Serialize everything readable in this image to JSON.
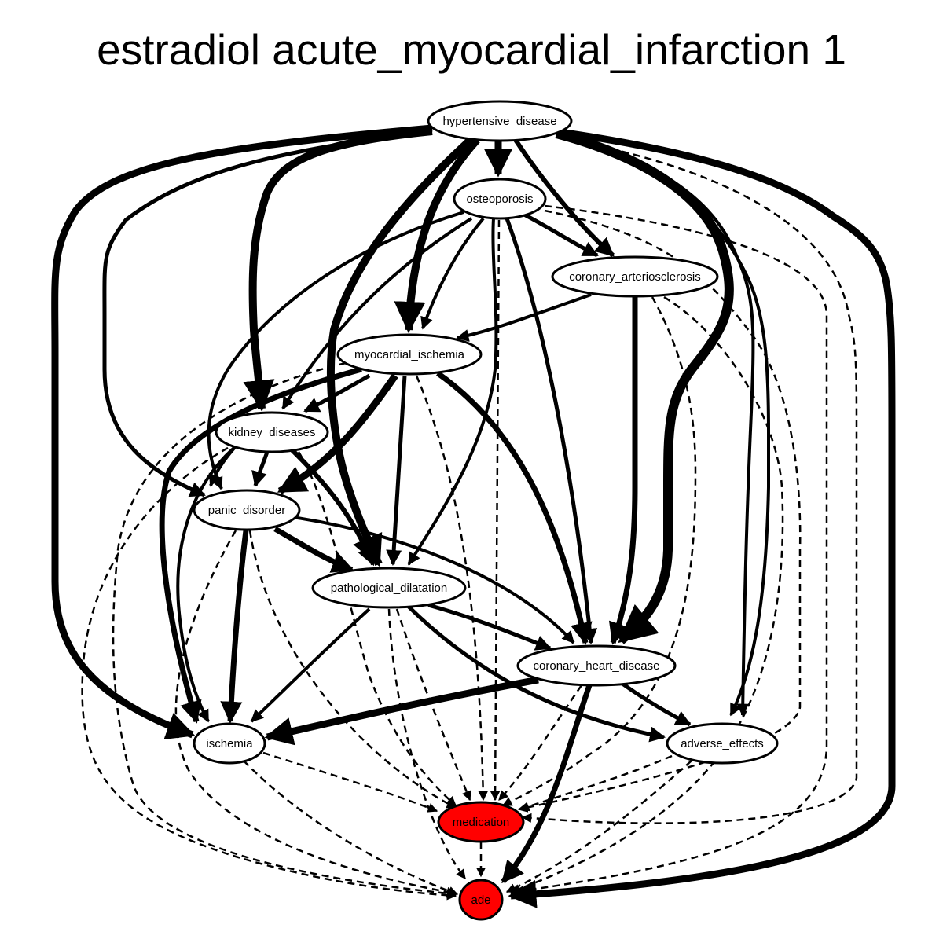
{
  "title": "estradiol acute_myocardial_infarction 1",
  "colors": {
    "normal_node": "#ffffff",
    "highlight_node": "#ff0000",
    "edge": "#000000"
  },
  "nodes": [
    {
      "id": "hypertensive_disease",
      "label": "hypertensive_disease",
      "highlight": false
    },
    {
      "id": "osteoporosis",
      "label": "osteoporosis",
      "highlight": false
    },
    {
      "id": "coronary_arteriosclerosis",
      "label": "coronary_arteriosclerosis",
      "highlight": false
    },
    {
      "id": "myocardial_ischemia",
      "label": "myocardial_ischemia",
      "highlight": false
    },
    {
      "id": "kidney_diseases",
      "label": "kidney_diseases",
      "highlight": false
    },
    {
      "id": "panic_disorder",
      "label": "panic_disorder",
      "highlight": false
    },
    {
      "id": "pathological_dilatation",
      "label": "pathological_dilatation",
      "highlight": false
    },
    {
      "id": "coronary_heart_disease",
      "label": "coronary_heart_disease",
      "highlight": false
    },
    {
      "id": "ischemia",
      "label": "ischemia",
      "highlight": false
    },
    {
      "id": "adverse_effects",
      "label": "adverse_effects",
      "highlight": false
    },
    {
      "id": "medication",
      "label": "medication",
      "highlight": true
    },
    {
      "id": "ade",
      "label": "ade",
      "highlight": true
    }
  ]
}
